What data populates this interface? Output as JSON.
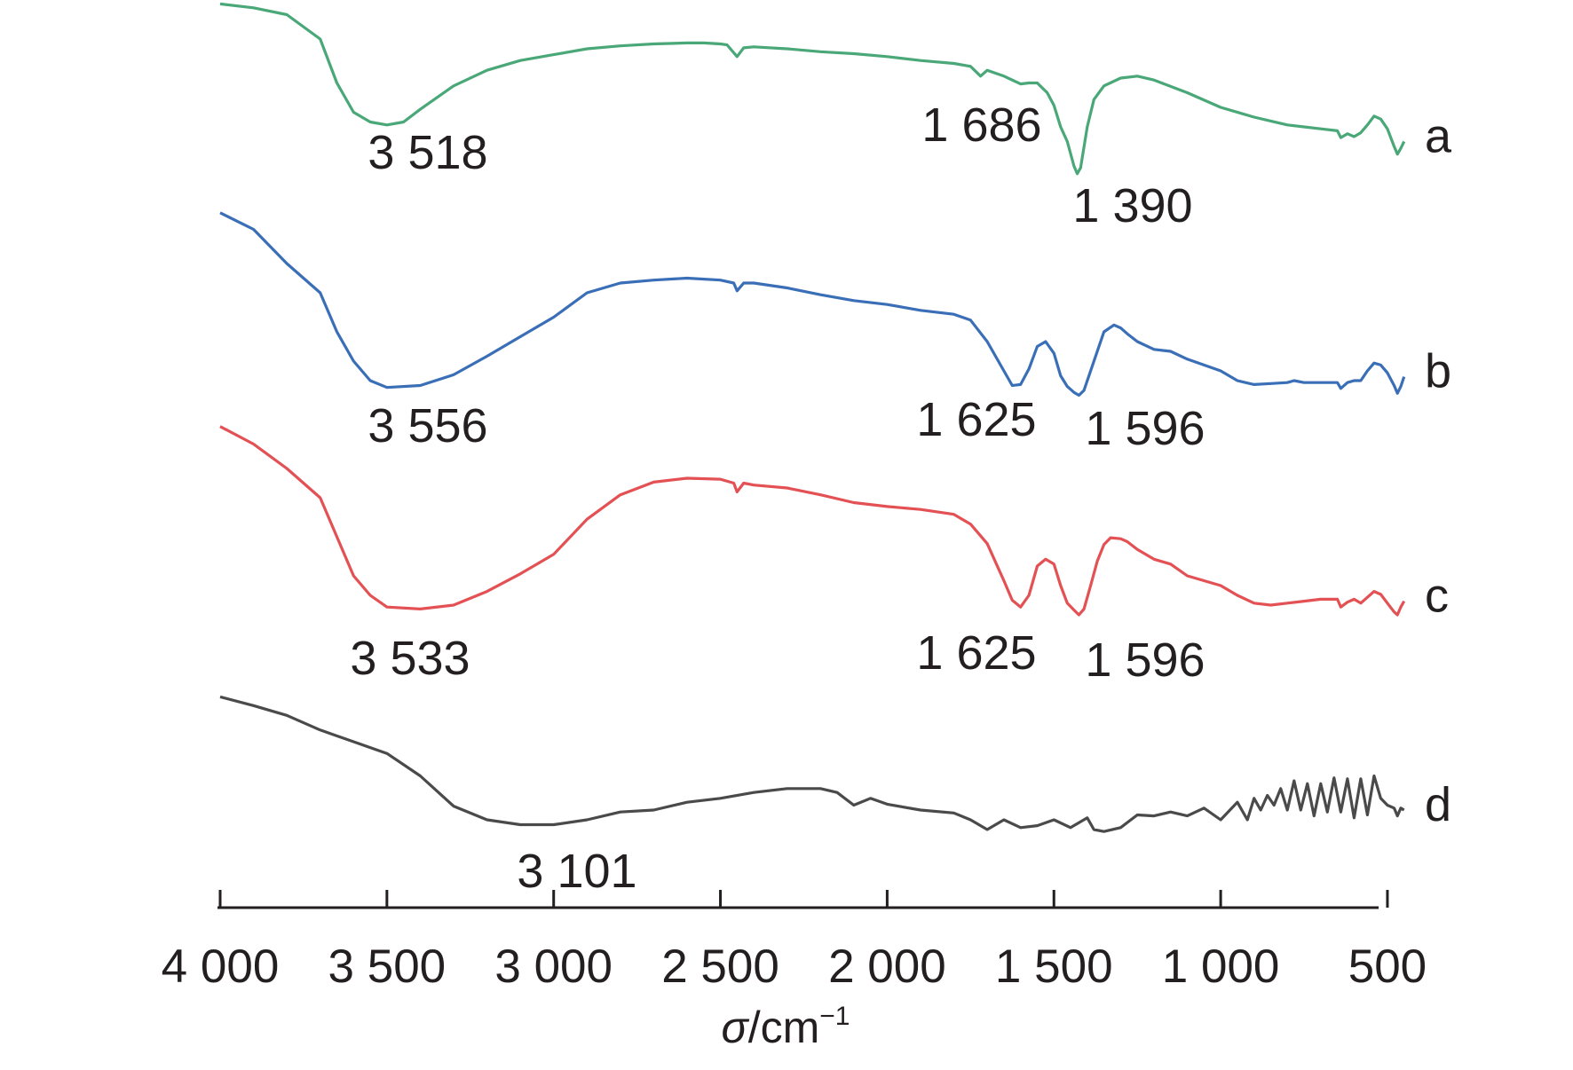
{
  "chart_data": {
    "type": "line",
    "title": "",
    "xlabel": {
      "symbol": "σ",
      "unit": "/cm",
      "exponent": "−1"
    },
    "ylabel": "",
    "xlim": [
      4000,
      420
    ],
    "x_reversed": true,
    "x_ticks": [
      4000,
      3500,
      3000,
      2500,
      2000,
      1500,
      1000,
      500
    ],
    "x_tick_labels": [
      "4 000",
      "3 500",
      "3 000",
      "2 500",
      "2 000",
      "1 500",
      "1 000",
      "500"
    ],
    "y_axis_shown": false,
    "grid": false,
    "series": [
      {
        "name": "a",
        "color": "#4aa878",
        "points": [
          [
            4000,
            4
          ],
          [
            3900,
            8
          ],
          [
            3800,
            15
          ],
          [
            3700,
            40
          ],
          [
            3650,
            85
          ],
          [
            3600,
            115
          ],
          [
            3550,
            125
          ],
          [
            3500,
            128
          ],
          [
            3450,
            125
          ],
          [
            3400,
            112
          ],
          [
            3300,
            88
          ],
          [
            3200,
            72
          ],
          [
            3100,
            62
          ],
          [
            3000,
            56
          ],
          [
            2900,
            50
          ],
          [
            2800,
            47
          ],
          [
            2700,
            45
          ],
          [
            2600,
            44
          ],
          [
            2550,
            44
          ],
          [
            2500,
            45
          ],
          [
            2480,
            46
          ],
          [
            2450,
            58
          ],
          [
            2430,
            49
          ],
          [
            2400,
            48
          ],
          [
            2300,
            50
          ],
          [
            2200,
            53
          ],
          [
            2100,
            55
          ],
          [
            2000,
            58
          ],
          [
            1900,
            62
          ],
          [
            1800,
            65
          ],
          [
            1750,
            68
          ],
          [
            1720,
            78
          ],
          [
            1700,
            72
          ],
          [
            1650,
            78
          ],
          [
            1600,
            86
          ],
          [
            1575,
            85
          ],
          [
            1550,
            85
          ],
          [
            1520,
            95
          ],
          [
            1500,
            108
          ],
          [
            1480,
            130
          ],
          [
            1460,
            145
          ],
          [
            1440,
            170
          ],
          [
            1430,
            178
          ],
          [
            1420,
            172
          ],
          [
            1400,
            130
          ],
          [
            1380,
            102
          ],
          [
            1350,
            88
          ],
          [
            1300,
            80
          ],
          [
            1250,
            78
          ],
          [
            1200,
            82
          ],
          [
            1100,
            95
          ],
          [
            1000,
            110
          ],
          [
            900,
            120
          ],
          [
            850,
            124
          ],
          [
            800,
            128
          ],
          [
            750,
            130
          ],
          [
            700,
            132
          ],
          [
            650,
            134
          ],
          [
            640,
            141
          ],
          [
            620,
            137
          ],
          [
            600,
            140
          ],
          [
            580,
            136
          ],
          [
            560,
            128
          ],
          [
            540,
            119
          ],
          [
            520,
            122
          ],
          [
            500,
            132
          ],
          [
            480,
            150
          ],
          [
            470,
            158
          ],
          [
            460,
            152
          ],
          [
            450,
            145
          ]
        ]
      },
      {
        "name": "b",
        "color": "#3a6fb7",
        "points": [
          [
            4000,
            218
          ],
          [
            3900,
            235
          ],
          [
            3800,
            270
          ],
          [
            3700,
            300
          ],
          [
            3650,
            340
          ],
          [
            3600,
            370
          ],
          [
            3550,
            390
          ],
          [
            3500,
            397
          ],
          [
            3400,
            395
          ],
          [
            3300,
            384
          ],
          [
            3200,
            365
          ],
          [
            3100,
            345
          ],
          [
            3000,
            325
          ],
          [
            2900,
            300
          ],
          [
            2800,
            290
          ],
          [
            2700,
            287
          ],
          [
            2600,
            285
          ],
          [
            2500,
            287
          ],
          [
            2460,
            290
          ],
          [
            2450,
            298
          ],
          [
            2430,
            290
          ],
          [
            2400,
            290
          ],
          [
            2300,
            295
          ],
          [
            2200,
            302
          ],
          [
            2100,
            308
          ],
          [
            2000,
            312
          ],
          [
            1900,
            318
          ],
          [
            1800,
            322
          ],
          [
            1750,
            328
          ],
          [
            1700,
            350
          ],
          [
            1650,
            380
          ],
          [
            1625,
            395
          ],
          [
            1600,
            394
          ],
          [
            1575,
            378
          ],
          [
            1550,
            355
          ],
          [
            1525,
            350
          ],
          [
            1500,
            362
          ],
          [
            1480,
            385
          ],
          [
            1460,
            396
          ],
          [
            1440,
            402
          ],
          [
            1425,
            405
          ],
          [
            1410,
            400
          ],
          [
            1390,
            380
          ],
          [
            1370,
            360
          ],
          [
            1350,
            340
          ],
          [
            1320,
            333
          ],
          [
            1300,
            336
          ],
          [
            1280,
            342
          ],
          [
            1250,
            350
          ],
          [
            1200,
            358
          ],
          [
            1150,
            360
          ],
          [
            1100,
            368
          ],
          [
            1000,
            380
          ],
          [
            950,
            390
          ],
          [
            900,
            394
          ],
          [
            850,
            393
          ],
          [
            800,
            392
          ],
          [
            780,
            390
          ],
          [
            750,
            392
          ],
          [
            700,
            392
          ],
          [
            650,
            392
          ],
          [
            640,
            398
          ],
          [
            620,
            392
          ],
          [
            600,
            390
          ],
          [
            580,
            390
          ],
          [
            560,
            380
          ],
          [
            540,
            372
          ],
          [
            520,
            374
          ],
          [
            500,
            382
          ],
          [
            480,
            395
          ],
          [
            470,
            403
          ],
          [
            460,
            396
          ],
          [
            450,
            386
          ]
        ]
      },
      {
        "name": "c",
        "color": "#e35154",
        "points": [
          [
            4000,
            437
          ],
          [
            3900,
            455
          ],
          [
            3800,
            480
          ],
          [
            3700,
            510
          ],
          [
            3650,
            550
          ],
          [
            3600,
            590
          ],
          [
            3550,
            610
          ],
          [
            3500,
            622
          ],
          [
            3400,
            624
          ],
          [
            3300,
            620
          ],
          [
            3200,
            606
          ],
          [
            3100,
            588
          ],
          [
            3000,
            568
          ],
          [
            2900,
            532
          ],
          [
            2800,
            507
          ],
          [
            2700,
            494
          ],
          [
            2600,
            490
          ],
          [
            2500,
            491
          ],
          [
            2460,
            495
          ],
          [
            2450,
            504
          ],
          [
            2430,
            495
          ],
          [
            2400,
            497
          ],
          [
            2300,
            500
          ],
          [
            2200,
            507
          ],
          [
            2100,
            515
          ],
          [
            2000,
            519
          ],
          [
            1900,
            522
          ],
          [
            1800,
            527
          ],
          [
            1750,
            537
          ],
          [
            1700,
            557
          ],
          [
            1650,
            595
          ],
          [
            1625,
            615
          ],
          [
            1600,
            622
          ],
          [
            1575,
            610
          ],
          [
            1550,
            580
          ],
          [
            1525,
            573
          ],
          [
            1500,
            578
          ],
          [
            1480,
            600
          ],
          [
            1460,
            618
          ],
          [
            1440,
            625
          ],
          [
            1425,
            630
          ],
          [
            1410,
            624
          ],
          [
            1390,
            600
          ],
          [
            1370,
            575
          ],
          [
            1350,
            558
          ],
          [
            1330,
            551
          ],
          [
            1300,
            552
          ],
          [
            1280,
            555
          ],
          [
            1250,
            563
          ],
          [
            1200,
            573
          ],
          [
            1150,
            578
          ],
          [
            1100,
            590
          ],
          [
            1000,
            600
          ],
          [
            950,
            610
          ],
          [
            900,
            618
          ],
          [
            850,
            620
          ],
          [
            800,
            618
          ],
          [
            750,
            616
          ],
          [
            700,
            614
          ],
          [
            650,
            614
          ],
          [
            640,
            622
          ],
          [
            620,
            617
          ],
          [
            600,
            614
          ],
          [
            580,
            618
          ],
          [
            560,
            612
          ],
          [
            540,
            606
          ],
          [
            520,
            609
          ],
          [
            500,
            618
          ],
          [
            480,
            627
          ],
          [
            470,
            630
          ],
          [
            460,
            622
          ],
          [
            450,
            616
          ]
        ]
      },
      {
        "name": "d",
        "color": "#4a4a4a",
        "points": [
          [
            4000,
            714
          ],
          [
            3900,
            723
          ],
          [
            3800,
            733
          ],
          [
            3700,
            748
          ],
          [
            3600,
            760
          ],
          [
            3500,
            772
          ],
          [
            3400,
            795
          ],
          [
            3300,
            826
          ],
          [
            3200,
            840
          ],
          [
            3100,
            845
          ],
          [
            3000,
            845
          ],
          [
            2900,
            840
          ],
          [
            2800,
            832
          ],
          [
            2700,
            830
          ],
          [
            2600,
            822
          ],
          [
            2500,
            818
          ],
          [
            2400,
            812
          ],
          [
            2300,
            808
          ],
          [
            2200,
            808
          ],
          [
            2150,
            812
          ],
          [
            2100,
            825
          ],
          [
            2050,
            818
          ],
          [
            2000,
            824
          ],
          [
            1900,
            830
          ],
          [
            1800,
            833
          ],
          [
            1750,
            840
          ],
          [
            1700,
            850
          ],
          [
            1650,
            840
          ],
          [
            1600,
            848
          ],
          [
            1550,
            846
          ],
          [
            1500,
            840
          ],
          [
            1450,
            848
          ],
          [
            1400,
            838
          ],
          [
            1380,
            850
          ],
          [
            1350,
            852
          ],
          [
            1300,
            848
          ],
          [
            1250,
            835
          ],
          [
            1200,
            836
          ],
          [
            1150,
            832
          ],
          [
            1100,
            836
          ],
          [
            1050,
            828
          ],
          [
            1000,
            840
          ],
          [
            950,
            822
          ],
          [
            920,
            840
          ],
          [
            900,
            818
          ],
          [
            880,
            830
          ],
          [
            860,
            815
          ],
          [
            840,
            825
          ],
          [
            820,
            808
          ],
          [
            800,
            830
          ],
          [
            780,
            800
          ],
          [
            760,
            830
          ],
          [
            740,
            803
          ],
          [
            720,
            836
          ],
          [
            700,
            803
          ],
          [
            680,
            832
          ],
          [
            660,
            797
          ],
          [
            640,
            832
          ],
          [
            620,
            798
          ],
          [
            600,
            838
          ],
          [
            580,
            798
          ],
          [
            560,
            835
          ],
          [
            540,
            795
          ],
          [
            520,
            818
          ],
          [
            500,
            825
          ],
          [
            480,
            828
          ],
          [
            470,
            836
          ],
          [
            460,
            828
          ],
          [
            450,
            830
          ]
        ]
      }
    ],
    "annotations": [
      {
        "text": "3 518",
        "series": "a"
      },
      {
        "text": "1 686",
        "series": "a"
      },
      {
        "text": "1 390",
        "series": "a"
      },
      {
        "text": "3 556",
        "series": "b"
      },
      {
        "text": "1 625",
        "series": "b"
      },
      {
        "text": "1 596",
        "series": "b"
      },
      {
        "text": "3 533",
        "series": "c"
      },
      {
        "text": "1 625",
        "series": "c"
      },
      {
        "text": "1 596",
        "series": "c"
      },
      {
        "text": "3 101",
        "series": "d"
      }
    ]
  }
}
